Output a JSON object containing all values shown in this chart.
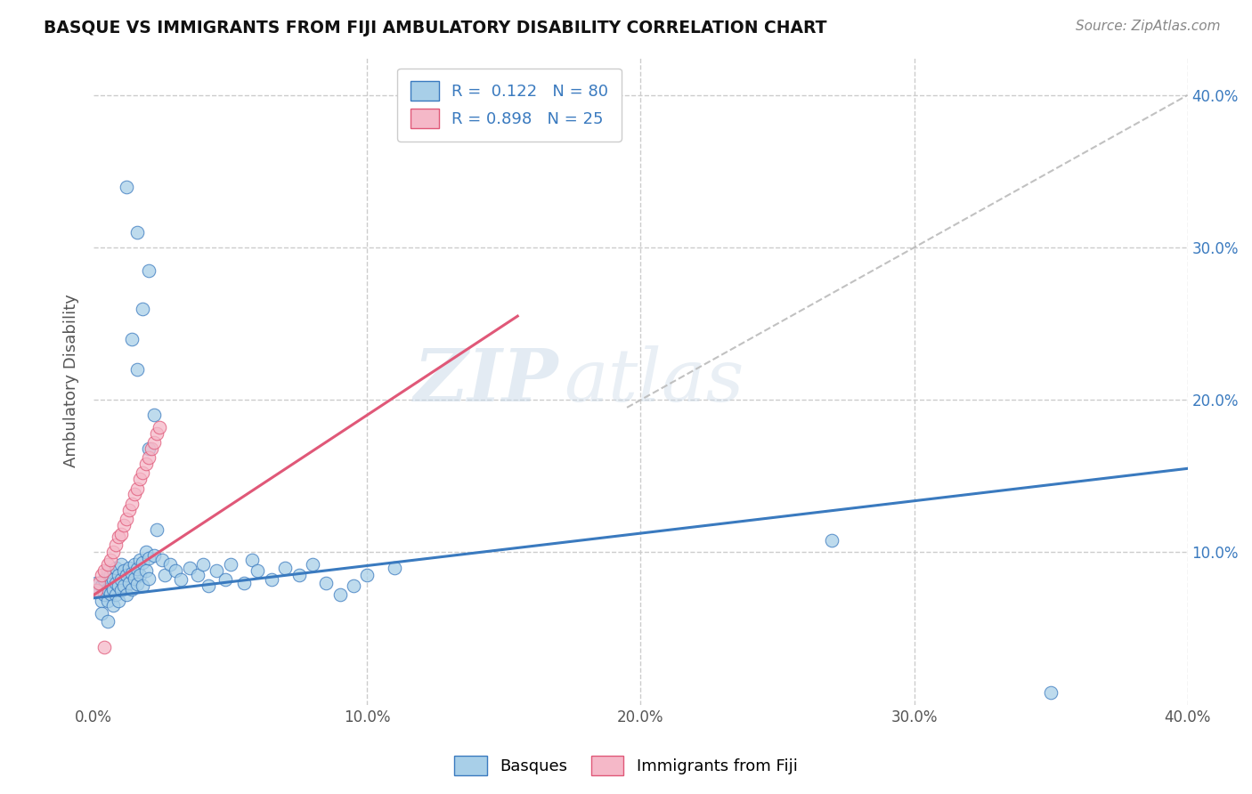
{
  "title": "BASQUE VS IMMIGRANTS FROM FIJI AMBULATORY DISABILITY CORRELATION CHART",
  "source_text": "Source: ZipAtlas.com",
  "ylabel": "Ambulatory Disability",
  "xlim": [
    0.0,
    0.4
  ],
  "ylim": [
    0.0,
    0.425
  ],
  "xtick_vals": [
    0.0,
    0.1,
    0.2,
    0.3,
    0.4
  ],
  "ytick_vals": [
    0.1,
    0.2,
    0.3,
    0.4
  ],
  "blue_color": "#a8cfe8",
  "pink_color": "#f5b8c8",
  "blue_line_color": "#3a7abf",
  "pink_line_color": "#e05878",
  "blue_trend": [
    0.0,
    0.4,
    0.07,
    0.155
  ],
  "pink_trend": [
    0.0,
    0.155,
    0.072,
    0.255
  ],
  "diag_line": [
    0.195,
    0.4,
    0.195,
    0.4
  ],
  "blue_scatter": [
    [
      0.001,
      0.08
    ],
    [
      0.002,
      0.075
    ],
    [
      0.003,
      0.068
    ],
    [
      0.003,
      0.078
    ],
    [
      0.004,
      0.082
    ],
    [
      0.004,
      0.072
    ],
    [
      0.005,
      0.088
    ],
    [
      0.005,
      0.076
    ],
    [
      0.005,
      0.068
    ],
    [
      0.006,
      0.085
    ],
    [
      0.006,
      0.079
    ],
    [
      0.006,
      0.073
    ],
    [
      0.007,
      0.082
    ],
    [
      0.007,
      0.076
    ],
    [
      0.007,
      0.065
    ],
    [
      0.008,
      0.09
    ],
    [
      0.008,
      0.08
    ],
    [
      0.008,
      0.072
    ],
    [
      0.009,
      0.085
    ],
    [
      0.009,
      0.078
    ],
    [
      0.009,
      0.068
    ],
    [
      0.01,
      0.092
    ],
    [
      0.01,
      0.082
    ],
    [
      0.01,
      0.075
    ],
    [
      0.011,
      0.088
    ],
    [
      0.011,
      0.078
    ],
    [
      0.012,
      0.085
    ],
    [
      0.012,
      0.072
    ],
    [
      0.013,
      0.09
    ],
    [
      0.013,
      0.08
    ],
    [
      0.014,
      0.086
    ],
    [
      0.014,
      0.076
    ],
    [
      0.015,
      0.092
    ],
    [
      0.015,
      0.083
    ],
    [
      0.016,
      0.089
    ],
    [
      0.016,
      0.079
    ],
    [
      0.017,
      0.095
    ],
    [
      0.017,
      0.085
    ],
    [
      0.018,
      0.093
    ],
    [
      0.018,
      0.078
    ],
    [
      0.019,
      0.1
    ],
    [
      0.019,
      0.088
    ],
    [
      0.02,
      0.096
    ],
    [
      0.02,
      0.083
    ],
    [
      0.022,
      0.098
    ],
    [
      0.023,
      0.115
    ],
    [
      0.025,
      0.095
    ],
    [
      0.026,
      0.085
    ],
    [
      0.028,
      0.092
    ],
    [
      0.03,
      0.088
    ],
    [
      0.032,
      0.082
    ],
    [
      0.035,
      0.09
    ],
    [
      0.038,
      0.085
    ],
    [
      0.04,
      0.092
    ],
    [
      0.042,
      0.078
    ],
    [
      0.045,
      0.088
    ],
    [
      0.048,
      0.082
    ],
    [
      0.05,
      0.092
    ],
    [
      0.055,
      0.08
    ],
    [
      0.058,
      0.095
    ],
    [
      0.06,
      0.088
    ],
    [
      0.065,
      0.082
    ],
    [
      0.07,
      0.09
    ],
    [
      0.075,
      0.085
    ],
    [
      0.08,
      0.092
    ],
    [
      0.085,
      0.08
    ],
    [
      0.02,
      0.168
    ],
    [
      0.022,
      0.19
    ],
    [
      0.018,
      0.26
    ],
    [
      0.02,
      0.285
    ],
    [
      0.016,
      0.22
    ],
    [
      0.014,
      0.24
    ],
    [
      0.012,
      0.34
    ],
    [
      0.016,
      0.31
    ],
    [
      0.09,
      0.072
    ],
    [
      0.095,
      0.078
    ],
    [
      0.1,
      0.085
    ],
    [
      0.11,
      0.09
    ],
    [
      0.27,
      0.108
    ],
    [
      0.35,
      0.008
    ],
    [
      0.003,
      0.06
    ],
    [
      0.005,
      0.055
    ]
  ],
  "pink_scatter": [
    [
      0.001,
      0.075
    ],
    [
      0.002,
      0.08
    ],
    [
      0.003,
      0.085
    ],
    [
      0.004,
      0.088
    ],
    [
      0.005,
      0.092
    ],
    [
      0.006,
      0.095
    ],
    [
      0.007,
      0.1
    ],
    [
      0.008,
      0.105
    ],
    [
      0.009,
      0.11
    ],
    [
      0.01,
      0.112
    ],
    [
      0.011,
      0.118
    ],
    [
      0.012,
      0.122
    ],
    [
      0.013,
      0.128
    ],
    [
      0.014,
      0.132
    ],
    [
      0.015,
      0.138
    ],
    [
      0.016,
      0.142
    ],
    [
      0.017,
      0.148
    ],
    [
      0.018,
      0.152
    ],
    [
      0.019,
      0.158
    ],
    [
      0.02,
      0.162
    ],
    [
      0.021,
      0.168
    ],
    [
      0.022,
      0.172
    ],
    [
      0.023,
      0.178
    ],
    [
      0.024,
      0.182
    ],
    [
      0.004,
      0.038
    ]
  ],
  "watermark_zip": "ZIP",
  "watermark_atlas": "atlas",
  "grid_color": "#cccccc",
  "grid_style": "--"
}
